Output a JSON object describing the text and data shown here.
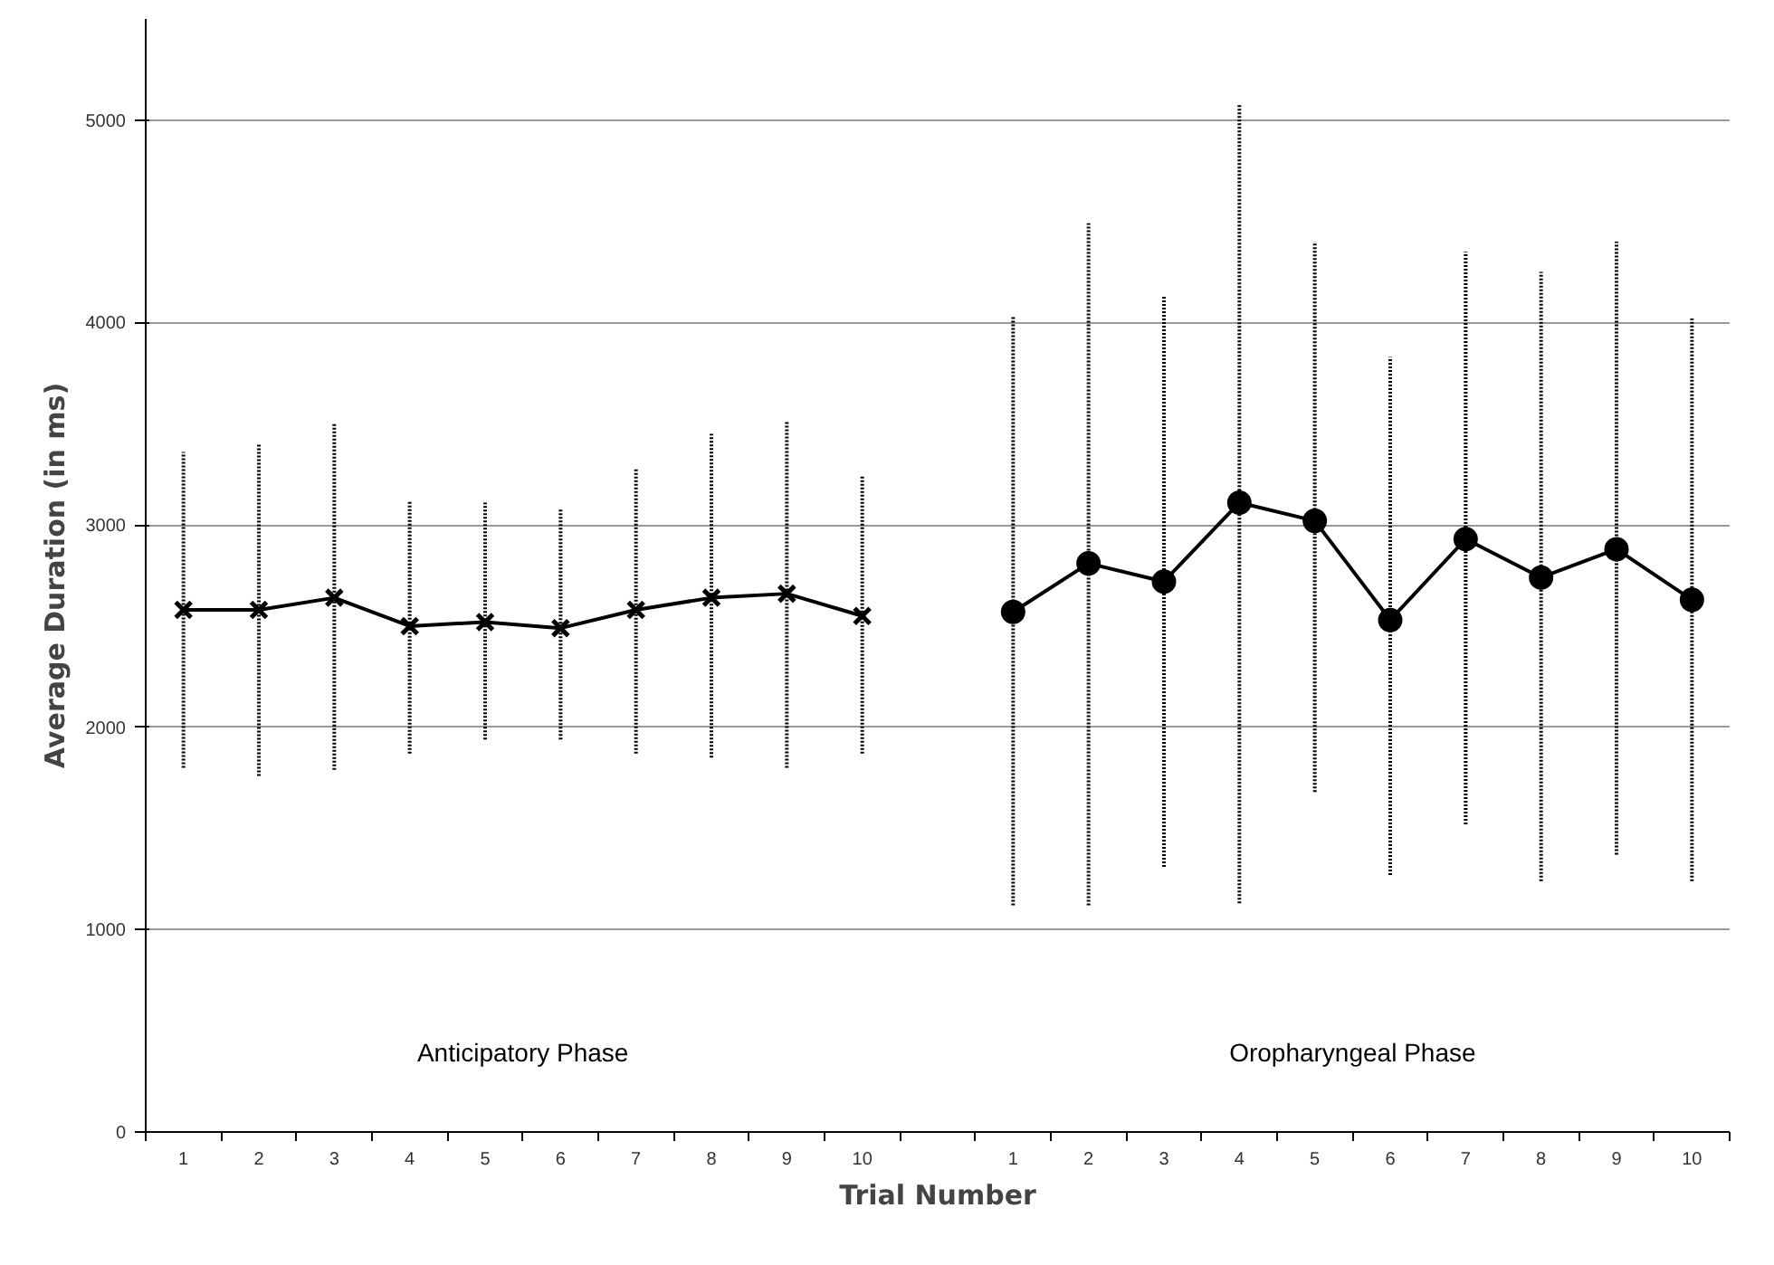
{
  "chart_data": {
    "type": "line",
    "xlabel": "Trial Number",
    "ylabel": "Average Duration (in ms)",
    "categories": [
      "1",
      "2",
      "3",
      "4",
      "5",
      "6",
      "7",
      "8",
      "9",
      "10",
      null,
      "1",
      "2",
      "3",
      "4",
      "5",
      "6",
      "7",
      "8",
      "9",
      "10"
    ],
    "series": [
      {
        "color": "#000000",
        "marker": "cross",
        "values": [
          2580,
          2580,
          2640,
          2500,
          2520,
          2490,
          2580,
          2640,
          2660,
          2550,
          null,
          null,
          null,
          null,
          null,
          null,
          null,
          null,
          null,
          null,
          null
        ],
        "errors": [
          [
            1800,
            3360
          ],
          [
            1760,
            3400
          ],
          [
            1790,
            3500
          ],
          [
            1870,
            3120
          ],
          [
            1940,
            3110
          ],
          [
            1940,
            3080
          ],
          [
            1870,
            3280
          ],
          [
            1850,
            3450
          ],
          [
            1800,
            3510
          ],
          [
            1870,
            3240
          ],
          null,
          null,
          null,
          null,
          null,
          null,
          null,
          null,
          null,
          null,
          null
        ]
      },
      {
        "color": "#000000",
        "marker": "circle",
        "values": [
          null,
          null,
          null,
          null,
          null,
          null,
          null,
          null,
          null,
          null,
          null,
          2570,
          2810,
          2720,
          3110,
          3020,
          2530,
          2930,
          2740,
          2880,
          2630
        ],
        "errors": [
          null,
          null,
          null,
          null,
          null,
          null,
          null,
          null,
          null,
          null,
          null,
          [
            1120,
            4030
          ],
          [
            1120,
            4490
          ],
          [
            1310,
            4130
          ],
          [
            1130,
            5080
          ],
          [
            1680,
            4400
          ],
          [
            1270,
            3830
          ],
          [
            1520,
            4350
          ],
          [
            1240,
            4250
          ],
          [
            1370,
            4400
          ],
          [
            1240,
            4020
          ]
        ]
      }
    ],
    "ylim": [
      0,
      5500
    ],
    "yticks": [
      0,
      1000,
      2000,
      3000,
      4000,
      5000
    ],
    "grid": "y",
    "annotations": [
      "Anticipatory Phase",
      "Oropharyngeal Phase"
    ]
  }
}
